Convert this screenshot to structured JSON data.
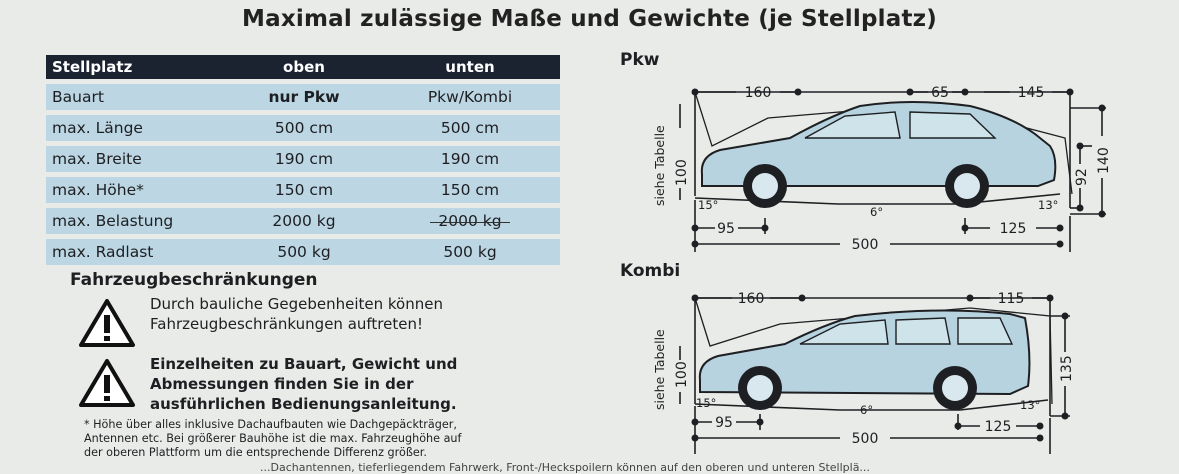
{
  "title": "Maximal zulässige Maße und Gewichte (je Stellplatz)",
  "table": {
    "headers": [
      "Stellplatz",
      "oben",
      "unten"
    ],
    "rows": [
      [
        "Bauart",
        "nur Pkw",
        "Pkw/Kombi"
      ],
      [
        "max. Länge",
        "500 cm",
        "500 cm"
      ],
      [
        "max. Breite",
        "190 cm",
        "190 cm"
      ],
      [
        "max. Höhe*",
        "150 cm",
        "150 cm"
      ],
      [
        "max. Belastung",
        "2000 kg",
        "2000 kg"
      ],
      [
        "max. Radlast",
        "500 kg",
        "500 kg"
      ]
    ]
  },
  "restrictions": {
    "title": "Fahrzeugbeschränkungen",
    "warning1": [
      "Durch bauliche Gegebenheiten können",
      "Fahrzeugbeschränkungen auftreten!"
    ],
    "warning2": [
      "Einzelheiten zu Bauart, Gewicht und",
      "Abmessungen finden Sie in der",
      "ausführlichen Bedienungsanleitung."
    ]
  },
  "footnote": [
    "* Höhe über alles inklusive Dachaufbauten wie Dachgepäckträger,",
    "Antennen etc. Bei größerer Bauhöhe ist die max. Fahrzeughöhe auf",
    "der oberen Plattform um die entsprechende Differenz größer."
  ],
  "footnote_cut": "...Dachantennen, tieferliegendem Fahrwerk, Front-/Heckspoilern können auf den oberen und unteren Stellplä...",
  "pkw": {
    "label": "Pkw",
    "side": "siehe Tabelle",
    "dims": {
      "top_front": "160",
      "top_mid": "65",
      "top_rear": "145",
      "left_h": "100",
      "right_h1": "92",
      "right_h2": "140",
      "angle_front": "15°",
      "angle_mid": "6°",
      "angle_rear": "13°",
      "bottom_front": "95",
      "bottom_rear": "125",
      "bottom_total": "500"
    }
  },
  "kombi": {
    "label": "Kombi",
    "side": "siehe Tabelle",
    "dims": {
      "top_front": "160",
      "top_rear": "115",
      "left_h": "100",
      "right_h": "135",
      "angle_front": "15°",
      "angle_mid": "6°",
      "angle_rear": "13°",
      "bottom_front": "95",
      "bottom_rear": "125",
      "bottom_total": "500"
    }
  },
  "colors": {
    "header_bg": "#1b2230",
    "row_bg": "#bcd6e3",
    "car_fill": "#b7d3df"
  }
}
